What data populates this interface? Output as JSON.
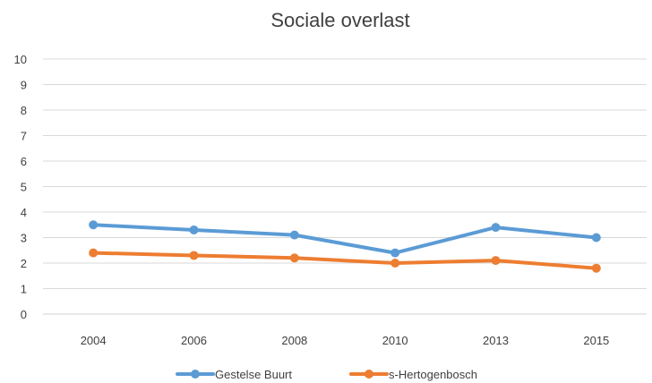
{
  "chart_data": {
    "type": "line",
    "title": "Sociale overlast",
    "categories": [
      "2004",
      "2006",
      "2008",
      "2010",
      "2013",
      "2015"
    ],
    "ylim": [
      0,
      10
    ],
    "yticks": [
      0,
      1,
      2,
      3,
      4,
      5,
      6,
      7,
      8,
      9,
      10
    ],
    "grid": true,
    "legend_position": "bottom",
    "series": [
      {
        "name": "Gestelse Buurt",
        "color": "#5b9bd5",
        "values": [
          3.5,
          3.3,
          3.1,
          2.4,
          3.4,
          3.0
        ]
      },
      {
        "name": "s-Hertogenbosch",
        "color": "#ed7d31",
        "values": [
          2.4,
          2.3,
          2.2,
          2.0,
          2.1,
          1.8
        ]
      }
    ]
  }
}
